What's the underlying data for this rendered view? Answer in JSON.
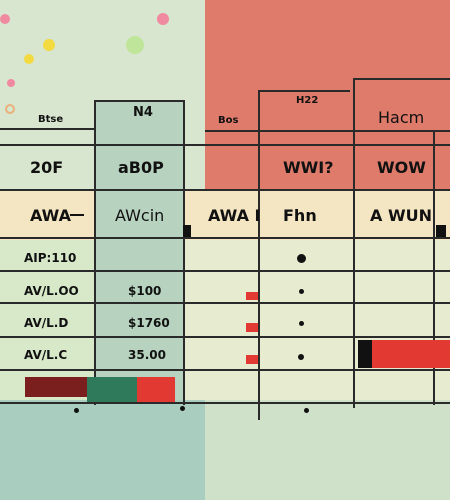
{
  "header": {
    "col1": "Btse",
    "col2": "N4",
    "col3": "Bos",
    "col4": "H22",
    "col5": "Hacm"
  },
  "subheader": {
    "col1": "20F",
    "col2": "aB0P",
    "col4": "WWI?",
    "col5": "WOW"
  },
  "labels": {
    "col1": "AWA",
    "col2": "AWcin",
    "col3": "AWA I",
    "col4": "Fhn",
    "col5": "A WUN"
  },
  "rows": [
    {
      "left": "AIP:110",
      "mid": ""
    },
    {
      "left": "AV/L.OO",
      "mid": "$100"
    },
    {
      "left": "AV/L.D",
      "mid": "$1760"
    },
    {
      "left": "AV/L.C",
      "mid": "35.00"
    }
  ],
  "colors": {
    "red": "#e23a32",
    "salmon": "#df7b6b",
    "cream": "#f5e6c3",
    "mint": "#b7d3bf",
    "dark": "#2a2a2a"
  }
}
